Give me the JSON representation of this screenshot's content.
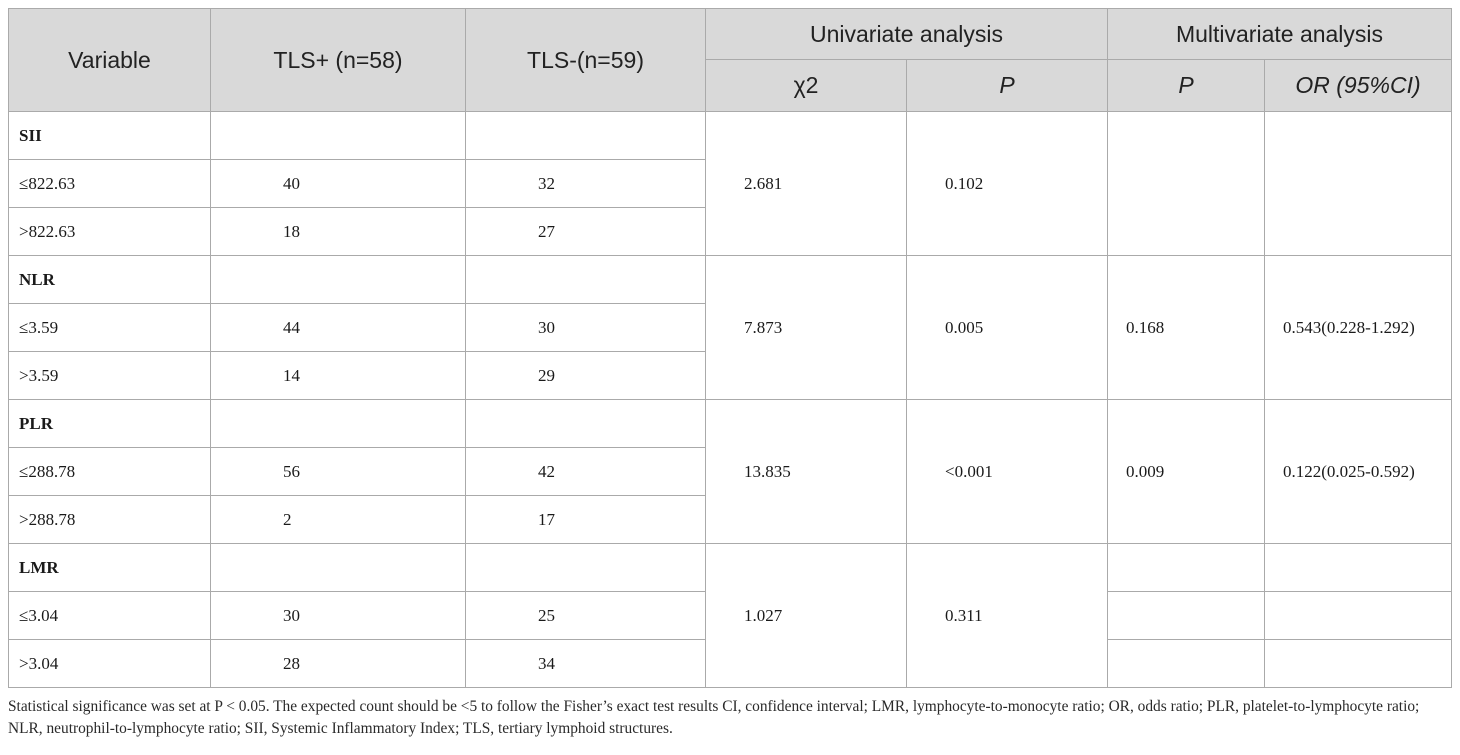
{
  "headers": {
    "variable": "Variable",
    "tls_pos": "TLS+ (n=58)",
    "tls_neg": "TLS-(n=59)",
    "univariate": "Univariate analysis",
    "multivariate": "Multivariate analysis",
    "chi2": "χ2",
    "p_uni": "P",
    "p_multi": "P",
    "or_ci": "OR (95%CI)"
  },
  "groups": [
    {
      "name": "SII",
      "rows": [
        {
          "label": "≤822.63",
          "tls_pos": "40",
          "tls_neg": "32"
        },
        {
          "label": ">822.63",
          "tls_pos": "18",
          "tls_neg": "27"
        }
      ],
      "chi2": "2.681",
      "p": "0.102",
      "p_multi": "",
      "or_ci": ""
    },
    {
      "name": "NLR",
      "rows": [
        {
          "label": "≤3.59",
          "tls_pos": "44",
          "tls_neg": "30"
        },
        {
          "label": ">3.59",
          "tls_pos": "14",
          "tls_neg": "29"
        }
      ],
      "chi2": "7.873",
      "p": "0.005",
      "p_multi": "0.168",
      "or_ci": "0.543(0.228-1.292)"
    },
    {
      "name": "PLR",
      "rows": [
        {
          "label": "≤288.78",
          "tls_pos": "56",
          "tls_neg": "42"
        },
        {
          "label": ">288.78",
          "tls_pos": "2",
          "tls_neg": "17"
        }
      ],
      "chi2": "13.835",
      "p": "<0.001",
      "p_multi": "0.009",
      "or_ci": "0.122(0.025-0.592)"
    },
    {
      "name": "LMR",
      "rows": [
        {
          "label": "≤3.04",
          "tls_pos": "30",
          "tls_neg": "25"
        },
        {
          "label": ">3.04",
          "tls_pos": "28",
          "tls_neg": "34"
        }
      ],
      "chi2": "1.027",
      "p": "0.311",
      "p_multi": "",
      "or_ci": ""
    }
  ],
  "footnote": "Statistical significance was set at P < 0.05. The expected count should be <5 to follow the Fisher’s exact test results CI, confidence interval; LMR, lymphocyte-to-monocyte ratio; OR, odds ratio; PLR, platelet-to-lymphocyte ratio; NLR, neutrophil-to-lymphocyte ratio; SII, Systemic Inflammatory Index; TLS, tertiary lymphoid structures."
}
